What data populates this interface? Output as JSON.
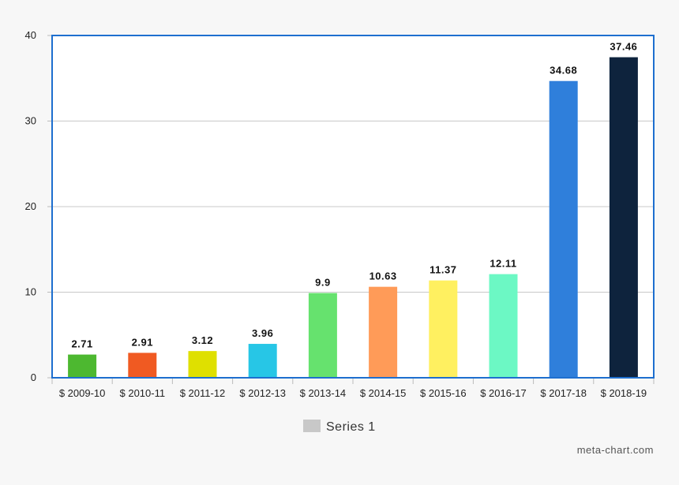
{
  "chart_data": {
    "type": "bar",
    "title": "",
    "xlabel": "",
    "ylabel": "",
    "categories": [
      "$ 2009-10",
      "$ 2010-11",
      "$ 2011-12",
      "$ 2012-13",
      "$ 2013-14",
      "$ 2014-15",
      "$ 2015-16",
      "$ 2016-17",
      "$ 2017-18",
      "$ 2018-19"
    ],
    "series": [
      {
        "name": "Series 1",
        "values": [
          2.71,
          2.91,
          3.12,
          3.96,
          9.9,
          10.63,
          11.37,
          12.11,
          34.68,
          37.46
        ],
        "value_labels": [
          "2.71",
          "2.91",
          "3.12",
          "3.96",
          "9.9",
          "10.63",
          "11.37",
          "12.11",
          "34.68",
          "37.46"
        ],
        "colors": [
          "#4db830",
          "#f05a22",
          "#dfe000",
          "#27c6e6",
          "#66e26e",
          "#ff9b58",
          "#fff060",
          "#6cf8c4",
          "#2f7fdb",
          "#0e233d"
        ]
      }
    ],
    "ylim": [
      0,
      40
    ],
    "yticks": [
      0,
      10,
      20,
      30,
      40
    ],
    "grid": true,
    "legend": "bottom-center",
    "legend_swatch_color": "#c8c8c8",
    "frame_color": "#1e6fcf",
    "grid_color": "#c8c8c8"
  },
  "credit": "meta-chart.com"
}
